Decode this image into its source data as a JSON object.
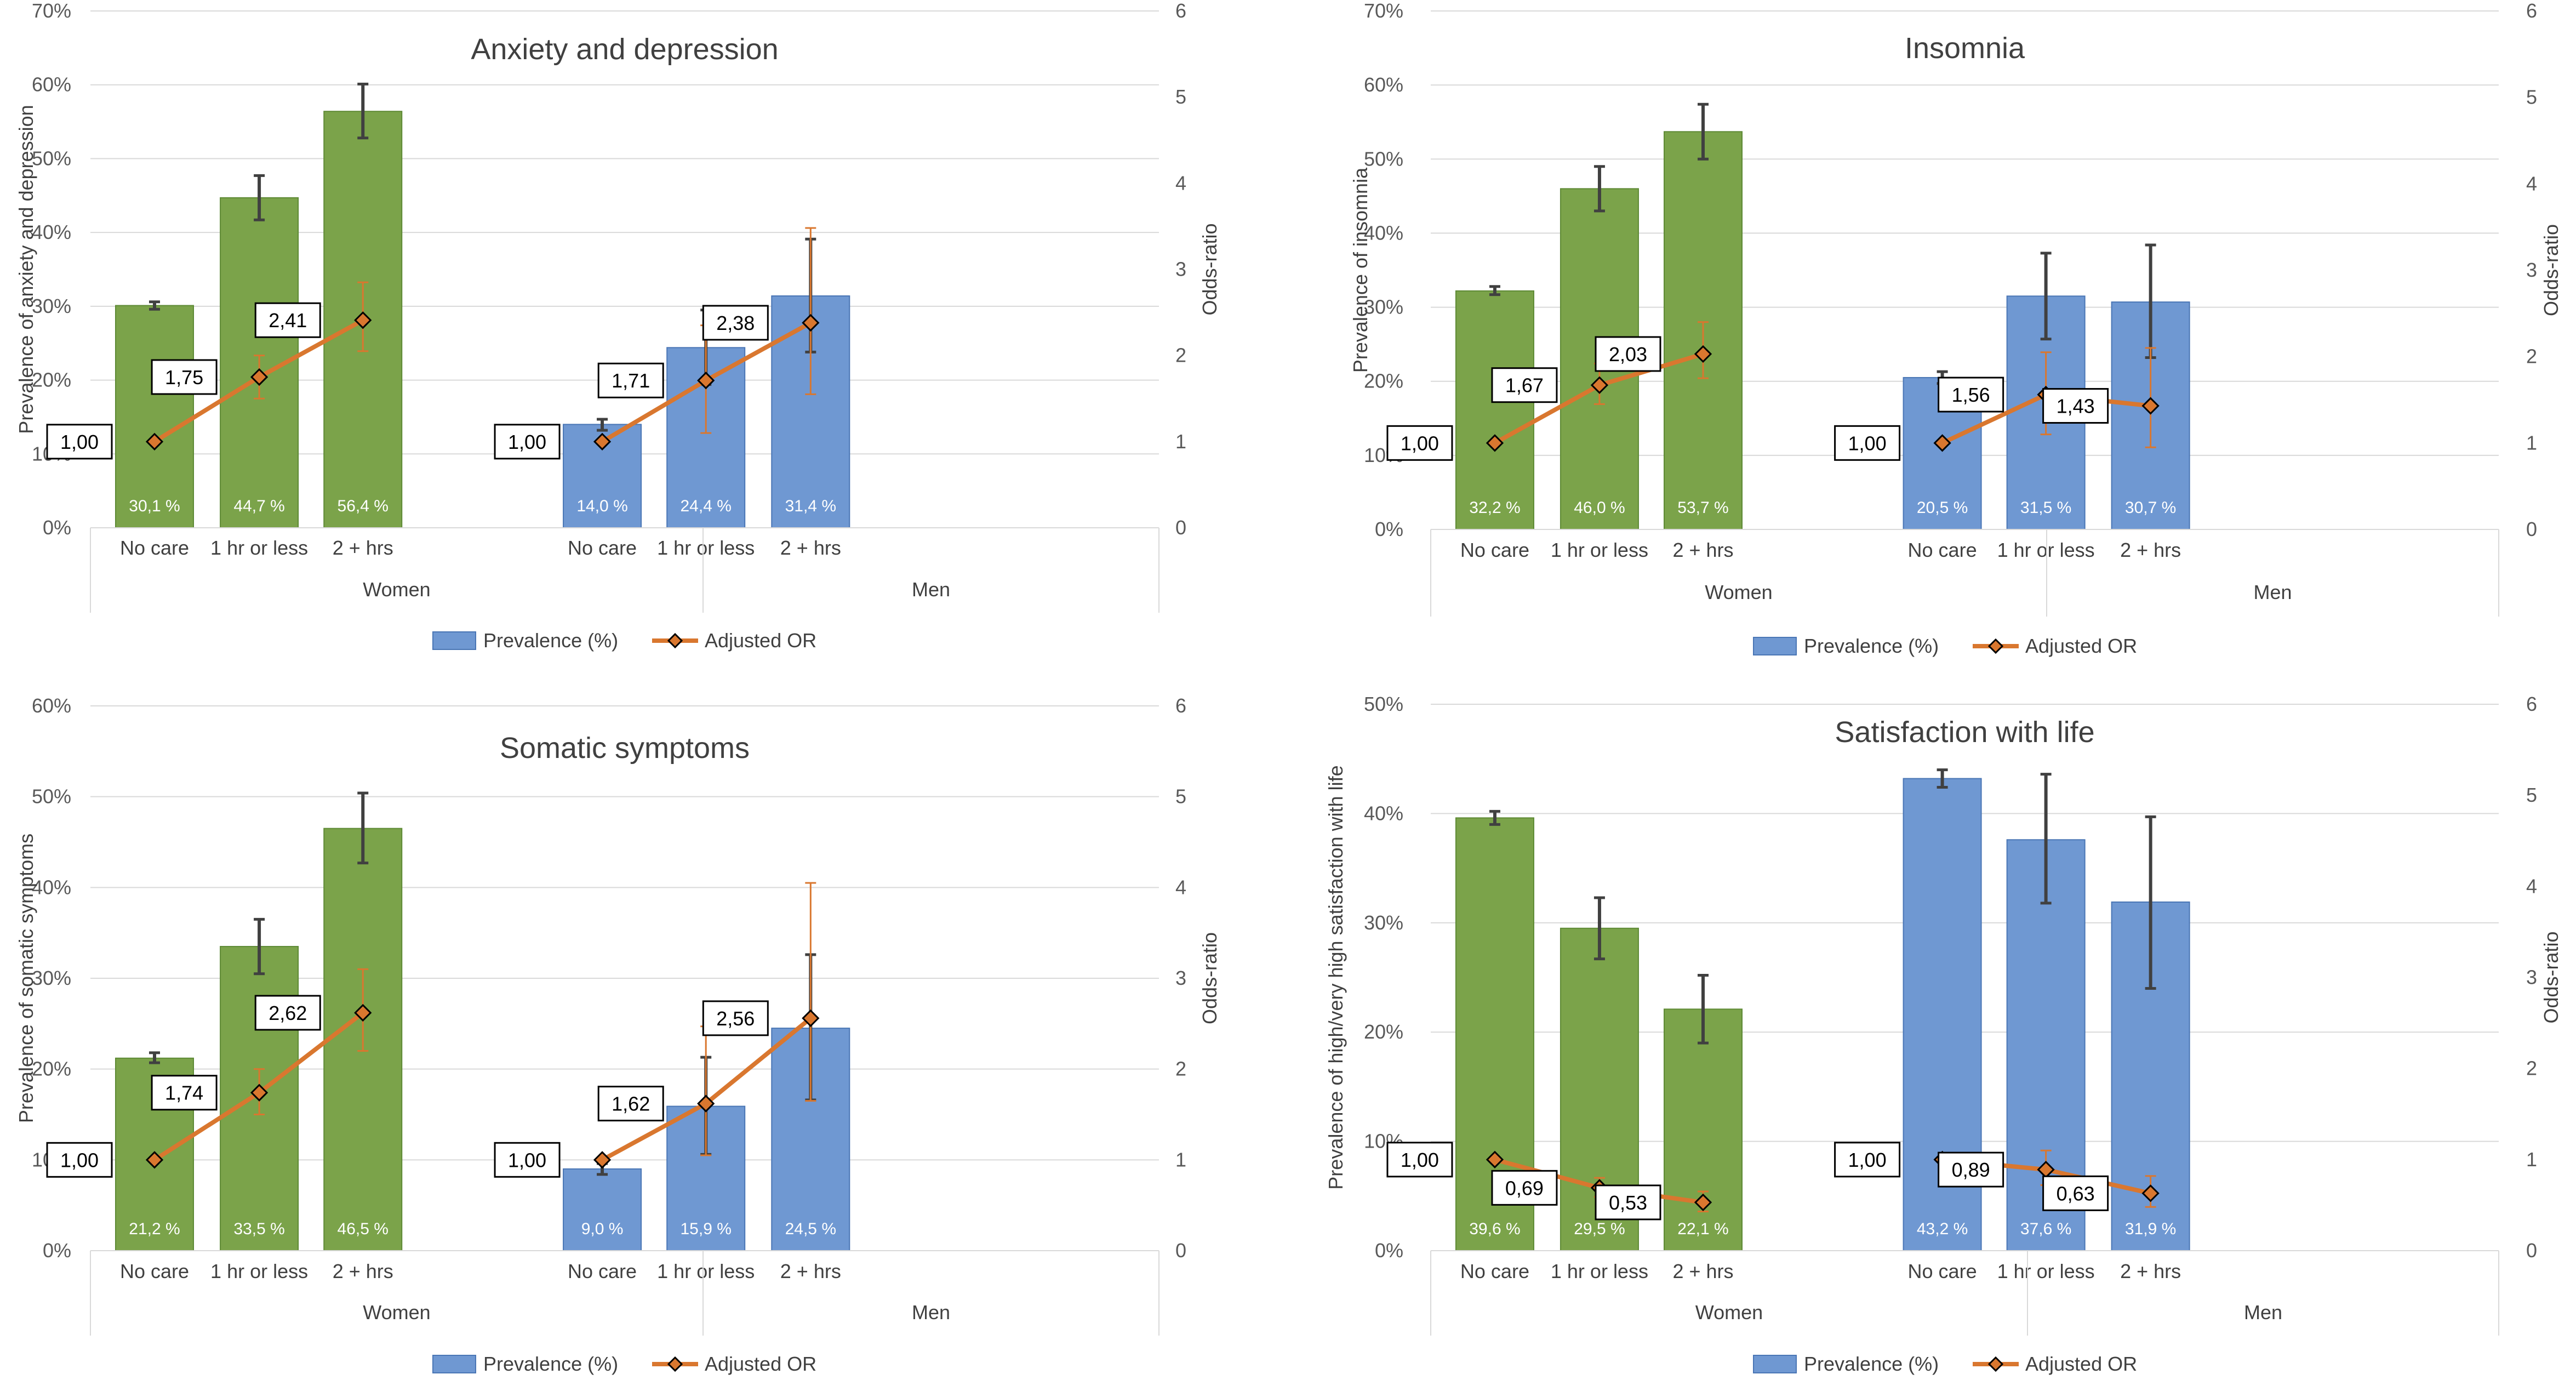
{
  "legend": {
    "prevalence_label": "Prevalence (%)",
    "or_label": "Adjusted OR"
  },
  "colors": {
    "women_bar": "#7ba34a",
    "men_bar": "#6f98d2",
    "or_line": "#d9772f",
    "grid": "#d9d9d9",
    "error_bar": "#404040"
  },
  "chart_data": [
    {
      "type": "bar",
      "title": "Anxiety and depression",
      "ylabel": "Prevalence of anxiety and depression",
      "y2label": "Odds-ratio",
      "ylim": [
        0,
        70
      ],
      "yticks": [
        "0%",
        "10%",
        "20%",
        "30%",
        "40%",
        "50%",
        "60%",
        "70%"
      ],
      "y2lim": [
        0,
        6
      ],
      "y2ticks": [
        "0",
        "1",
        "2",
        "3",
        "4",
        "5",
        "6"
      ],
      "groups": [
        {
          "name": "Women",
          "categories": [
            "No care",
            "1 hr or less",
            "2 + hrs"
          ],
          "prevalence": [
            30.1,
            44.7,
            56.4
          ],
          "prevalence_labels": [
            "30,1 %",
            "44,7 %",
            "56,4 %"
          ],
          "prevalence_ci": [
            [
              29.6,
              30.6
            ],
            [
              41.7,
              47.7
            ],
            [
              52.8,
              60.1
            ]
          ],
          "or": [
            1.0,
            1.75,
            2.41
          ],
          "or_labels": [
            "1,00",
            "1,75",
            "2,41"
          ],
          "or_ci": [
            [
              1.0,
              1.0
            ],
            [
              1.5,
              2.0
            ],
            [
              2.05,
              2.85
            ]
          ]
        },
        {
          "name": "Men",
          "categories": [
            "No care",
            "1 hr or less",
            "2 + hrs"
          ],
          "prevalence": [
            14.0,
            24.4,
            31.4
          ],
          "prevalence_labels": [
            "14,0 %",
            "24,4 %",
            "31,4 %"
          ],
          "prevalence_ci": [
            [
              13.2,
              14.7
            ],
            [
              19.4,
              29.5
            ],
            [
              23.8,
              39.1
            ]
          ],
          "or": [
            1.0,
            1.71,
            2.38
          ],
          "or_labels": [
            "1,00",
            "1,71",
            "2,38"
          ],
          "or_ci": [
            [
              1.0,
              1.0
            ],
            [
              1.1,
              2.35
            ],
            [
              1.55,
              3.48
            ]
          ]
        }
      ],
      "legend_position": "bottom"
    },
    {
      "type": "bar",
      "title": "Insomnia",
      "ylabel": "Prevalence of insomnia",
      "y2label": "Odds-ratio",
      "ylim": [
        0,
        70
      ],
      "yticks": [
        "0%",
        "10%",
        "20%",
        "30%",
        "40%",
        "50%",
        "60%",
        "70%"
      ],
      "y2lim": [
        0,
        6
      ],
      "y2ticks": [
        "0",
        "1",
        "2",
        "3",
        "4",
        "5",
        "6"
      ],
      "groups": [
        {
          "name": "Women",
          "categories": [
            "No care",
            "1 hr or less",
            "2 + hrs"
          ],
          "prevalence": [
            32.2,
            46.0,
            53.7
          ],
          "prevalence_labels": [
            "32,2 %",
            "46,0 %",
            "53,7 %"
          ],
          "prevalence_ci": [
            [
              31.7,
              32.8
            ],
            [
              43.0,
              49.0
            ],
            [
              50.0,
              57.4
            ]
          ],
          "or": [
            1.0,
            1.67,
            2.03
          ],
          "or_labels": [
            "1,00",
            "1,67",
            "2,03"
          ],
          "or_ci": [
            [
              1.0,
              1.0
            ],
            [
              1.45,
              1.92
            ],
            [
              1.75,
              2.4
            ]
          ]
        },
        {
          "name": "Men",
          "categories": [
            "No care",
            "1 hr or less",
            "2 + hrs"
          ],
          "prevalence": [
            20.5,
            31.5,
            30.7
          ],
          "prevalence_labels": [
            "20,5 %",
            "31,5 %",
            "30,7 %"
          ],
          "prevalence_ci": [
            [
              19.7,
              21.3
            ],
            [
              25.7,
              37.3
            ],
            [
              23.2,
              38.4
            ]
          ],
          "or": [
            1.0,
            1.56,
            1.43
          ],
          "or_labels": [
            "1,00",
            "1,56",
            "1,43"
          ],
          "or_ci": [
            [
              1.0,
              1.0
            ],
            [
              1.1,
              2.05
            ],
            [
              0.95,
              2.1
            ]
          ]
        }
      ],
      "legend_position": "bottom"
    },
    {
      "type": "bar",
      "title": "Somatic symptoms",
      "ylabel": "Prevalence of somatic symptoms",
      "y2label": "Odds-ratio",
      "ylim": [
        0,
        60
      ],
      "yticks": [
        "0%",
        "10%",
        "20%",
        "30%",
        "40%",
        "50%",
        "60%"
      ],
      "y2lim": [
        0,
        6
      ],
      "y2ticks": [
        "0",
        "1",
        "2",
        "3",
        "4",
        "5",
        "6"
      ],
      "groups": [
        {
          "name": "Women",
          "categories": [
            "No care",
            "1 hr or less",
            "2 + hrs"
          ],
          "prevalence": [
            21.2,
            33.5,
            46.5
          ],
          "prevalence_labels": [
            "21,2 %",
            "33,5 %",
            "46,5 %"
          ],
          "prevalence_ci": [
            [
              20.7,
              21.8
            ],
            [
              30.5,
              36.5
            ],
            [
              42.7,
              50.4
            ]
          ],
          "or": [
            1.0,
            1.74,
            2.62
          ],
          "or_labels": [
            "1,00",
            "1,74",
            "2,62"
          ],
          "or_ci": [
            [
              1.0,
              1.0
            ],
            [
              1.5,
              2.0
            ],
            [
              2.2,
              3.1
            ]
          ]
        },
        {
          "name": "Men",
          "categories": [
            "No care",
            "1 hr or less",
            "2 + hrs"
          ],
          "prevalence": [
            9.0,
            15.9,
            24.5
          ],
          "prevalence_labels": [
            "9,0 %",
            "15,9 %",
            "24,5 %"
          ],
          "prevalence_ci": [
            [
              8.4,
              9.6
            ],
            [
              10.6,
              21.3
            ],
            [
              16.6,
              32.6
            ]
          ],
          "or": [
            1.0,
            1.62,
            2.56
          ],
          "or_labels": [
            "1,00",
            "1,62",
            "2,56"
          ],
          "or_ci": [
            [
              1.0,
              1.0
            ],
            [
              1.05,
              2.47
            ],
            [
              1.65,
              4.05
            ]
          ]
        }
      ],
      "legend_position": "bottom"
    },
    {
      "type": "bar",
      "title": "Satisfaction with life",
      "ylabel": "Prevalence of high/very high satisfaction with life",
      "y2label": "Odds-ratio",
      "ylim": [
        0,
        50
      ],
      "yticks": [
        "0%",
        "10%",
        "20%",
        "30%",
        "40%",
        "50%"
      ],
      "y2lim": [
        0,
        6
      ],
      "y2ticks": [
        "0",
        "1",
        "2",
        "3",
        "4",
        "5",
        "6"
      ],
      "groups": [
        {
          "name": "Women",
          "categories": [
            "No care",
            "1 hr or less",
            "2 + hrs"
          ],
          "prevalence": [
            39.6,
            29.5,
            22.1
          ],
          "prevalence_labels": [
            "39,6 %",
            "29,5 %",
            "22,1 %"
          ],
          "prevalence_ci": [
            [
              39.0,
              40.2
            ],
            [
              26.7,
              32.3
            ],
            [
              19.0,
              25.2
            ]
          ],
          "or": [
            1.0,
            0.69,
            0.53
          ],
          "or_labels": [
            "1,00",
            "0,69",
            "0,53"
          ],
          "or_ci": [
            [
              1.0,
              1.0
            ],
            [
              0.59,
              0.8
            ],
            [
              0.43,
              0.65
            ]
          ]
        },
        {
          "name": "Men",
          "categories": [
            "No care",
            "1 hr or less",
            "2 + hrs"
          ],
          "prevalence": [
            43.2,
            37.6,
            31.9
          ],
          "prevalence_labels": [
            "43,2 %",
            "37,6 %",
            "31,9 %"
          ],
          "prevalence_ci": [
            [
              42.4,
              44.0
            ],
            [
              31.8,
              43.6
            ],
            [
              24.0,
              39.7
            ]
          ],
          "or": [
            1.0,
            0.89,
            0.63
          ],
          "or_labels": [
            "1,00",
            "0,89",
            "0,63"
          ],
          "or_ci": [
            [
              1.0,
              1.0
            ],
            [
              0.72,
              1.1
            ],
            [
              0.48,
              0.82
            ]
          ]
        }
      ],
      "legend_position": "bottom"
    }
  ]
}
